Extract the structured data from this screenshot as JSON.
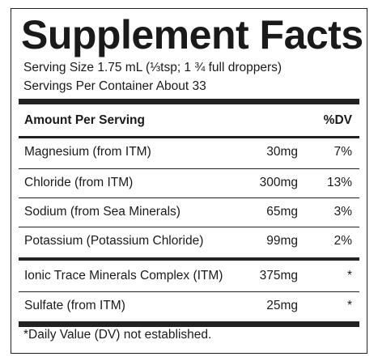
{
  "title": "Supplement Facts",
  "serving_size": "Serving Size 1.75 mL (⅓tsp; 1 ¾ full droppers)",
  "servings_per_container": "Servings Per Container About 33",
  "table": {
    "header_amount": "Amount Per Serving",
    "header_dv": "%DV",
    "group1": [
      {
        "name": "Magnesium (from ITM)",
        "amount": "30mg",
        "dv": "7%"
      },
      {
        "name": "Chloride (from ITM)",
        "amount": "300mg",
        "dv": "13%"
      },
      {
        "name": "Sodium (from Sea Minerals)",
        "amount": "65mg",
        "dv": "3%"
      },
      {
        "name": "Potassium (Potassium Chloride)",
        "amount": "99mg",
        "dv": "2%"
      }
    ],
    "group2": [
      {
        "name": "Ionic Trace Minerals Complex (ITM)",
        "amount": "375mg",
        "dv": "*"
      },
      {
        "name": "Sulfate (from ITM)",
        "amount": "25mg",
        "dv": "*"
      }
    ]
  },
  "footnote": "*Daily Value (DV) not established."
}
